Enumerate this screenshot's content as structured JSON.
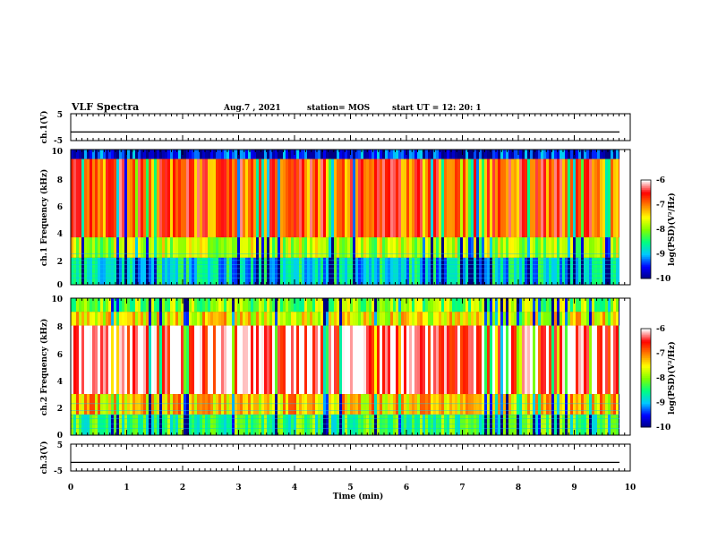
{
  "header": {
    "title": "VLF Spectra",
    "date": "Aug.7 , 2021",
    "station": "station= MOS",
    "start_ut": "start UT =  12: 20: 1"
  },
  "chart_data": [
    {
      "type": "line",
      "panel": "ch1-waveform",
      "ylabel": "ch.1(V)",
      "ylim": [
        -5,
        5
      ],
      "yticks": [
        "5",
        "-5"
      ],
      "x": [
        0,
        10
      ],
      "series": [
        {
          "values": [
            -1.8,
            -1.8
          ]
        }
      ]
    },
    {
      "type": "heatmap",
      "panel": "ch1-spectrogram",
      "ylabel": "ch.1 Frequency (kHz)",
      "ylim": [
        0,
        10
      ],
      "yticks": [
        "0",
        "2",
        "4",
        "6",
        "8",
        "10"
      ],
      "xlim": [
        0,
        9.85
      ],
      "bands": [
        {
          "f_low": 9.3,
          "f_high": 10.0,
          "level": -9.5
        },
        {
          "f_low": 3.5,
          "f_high": 9.3,
          "level": -6.8
        },
        {
          "f_low": 2.0,
          "f_high": 3.5,
          "level": -7.8
        },
        {
          "f_low": 0.0,
          "f_high": 2.0,
          "level": -8.8
        }
      ],
      "colorbar": {
        "label": "log(PSD)(V²/Hz)",
        "ticks": [
          "-6",
          "-7",
          "-8",
          "-9",
          "-10"
        ],
        "range": [
          -10,
          -6
        ]
      }
    },
    {
      "type": "heatmap",
      "panel": "ch2-spectrogram",
      "ylabel": "ch.2 Frequency (kHz)",
      "ylim": [
        0,
        10
      ],
      "yticks": [
        "0",
        "2",
        "4",
        "6",
        "8",
        "10"
      ],
      "xlim": [
        0,
        9.85
      ],
      "bands": [
        {
          "f_low": 9.0,
          "f_high": 10.0,
          "level": -8.0
        },
        {
          "f_low": 8.0,
          "f_high": 9.0,
          "level": -7.5
        },
        {
          "f_low": 3.0,
          "f_high": 8.0,
          "level": -6.2
        },
        {
          "f_low": 1.5,
          "f_high": 3.0,
          "level": -7.3
        },
        {
          "f_low": 0.0,
          "f_high": 1.5,
          "level": -8.3
        }
      ],
      "colorbar": {
        "label": "log(PSD)(V²/Hz)",
        "ticks": [
          "-6",
          "-7",
          "-8",
          "-9",
          "-10"
        ],
        "range": [
          -10,
          -6
        ]
      }
    },
    {
      "type": "line",
      "panel": "ch3-waveform",
      "ylabel": "ch.3(V)",
      "ylim": [
        -5,
        5
      ],
      "yticks": [
        "5",
        "-5"
      ],
      "x": [
        0,
        10
      ],
      "series": [
        {
          "values": [
            -1.8,
            -1.8
          ]
        }
      ]
    }
  ],
  "xaxis": {
    "label": "Time (min)",
    "ticks": [
      "0",
      "1",
      "2",
      "3",
      "4",
      "5",
      "6",
      "7",
      "8",
      "9",
      "10"
    ]
  },
  "colors": {
    "colormap": [
      "#000080",
      "#0000ff",
      "#00c8ff",
      "#00ff80",
      "#80ff00",
      "#ffff00",
      "#ff8000",
      "#ff0000",
      "#ffffff"
    ]
  }
}
